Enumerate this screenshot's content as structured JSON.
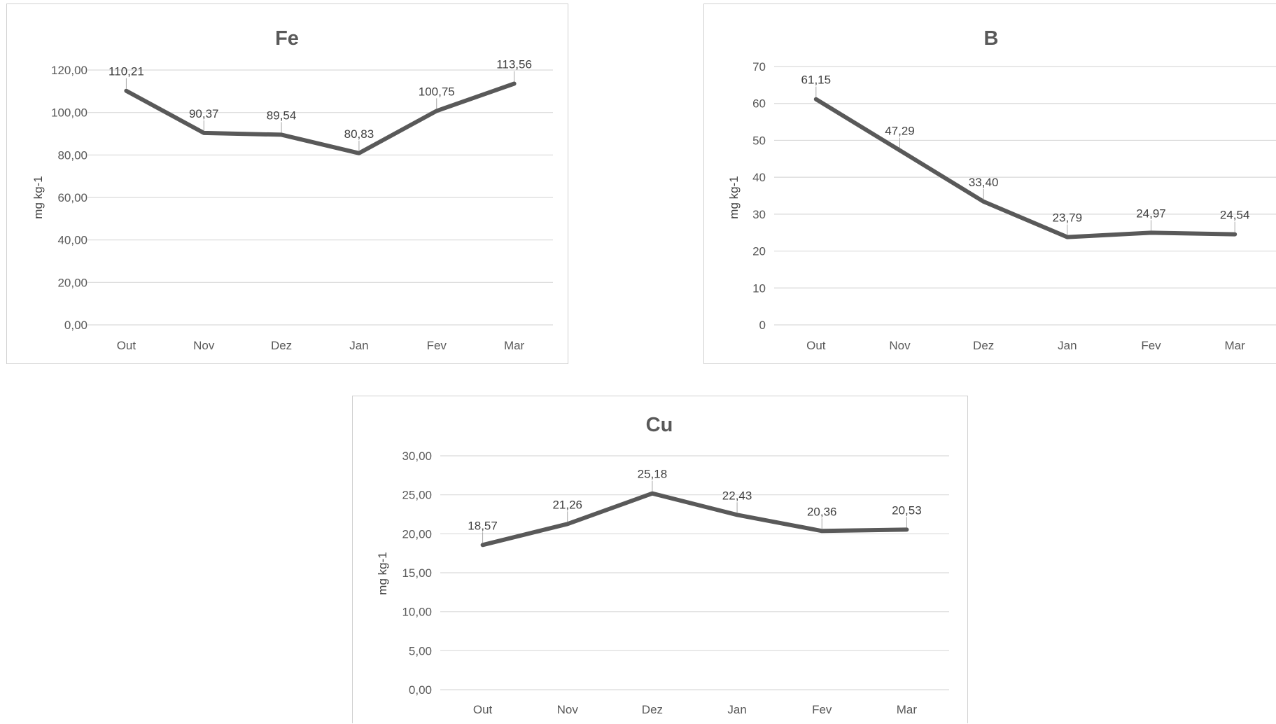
{
  "chart_data": [
    {
      "type": "line",
      "title": "Fe",
      "ylabel": "mg kg-1",
      "xlabel": "",
      "categories": [
        "Out",
        "Nov",
        "Dez",
        "Jan",
        "Fev",
        "Mar"
      ],
      "values": [
        110.21,
        90.37,
        89.54,
        80.83,
        100.75,
        113.56
      ],
      "value_labels": [
        "110,21",
        "90,37",
        "89,54",
        "80,83",
        "100,75",
        "113,56"
      ],
      "y_ticks": [
        "0,00",
        "20,00",
        "40,00",
        "60,00",
        "80,00",
        "100,00",
        "120,00"
      ],
      "ylim": [
        0,
        120
      ],
      "grid": true,
      "legend": "none",
      "line_color": "#595959"
    },
    {
      "type": "line",
      "title": "B",
      "ylabel": "mg kg-1",
      "xlabel": "",
      "categories": [
        "Out",
        "Nov",
        "Dez",
        "Jan",
        "Fev",
        "Mar"
      ],
      "values": [
        61.15,
        47.29,
        33.4,
        23.79,
        24.97,
        24.54
      ],
      "value_labels": [
        "61,15",
        "47,29",
        "33,40",
        "23,79",
        "24,97",
        "24,54"
      ],
      "y_ticks": [
        "0",
        "10",
        "20",
        "30",
        "40",
        "50",
        "60",
        "70"
      ],
      "ylim": [
        0,
        70
      ],
      "grid": true,
      "legend": "none",
      "line_color": "#595959"
    },
    {
      "type": "line",
      "title": "Cu",
      "ylabel": "mg kg-1",
      "xlabel": "",
      "categories": [
        "Out",
        "Nov",
        "Dez",
        "Jan",
        "Fev",
        "Mar"
      ],
      "values": [
        18.57,
        21.26,
        25.18,
        22.43,
        20.36,
        20.53
      ],
      "value_labels": [
        "18,57",
        "21,26",
        "25,18",
        "22,43",
        "20,36",
        "20,53"
      ],
      "y_ticks": [
        "0,00",
        "5,00",
        "10,00",
        "15,00",
        "20,00",
        "25,00",
        "30,00"
      ],
      "ylim": [
        0,
        30
      ],
      "grid": true,
      "legend": "none",
      "line_color": "#595959"
    }
  ]
}
